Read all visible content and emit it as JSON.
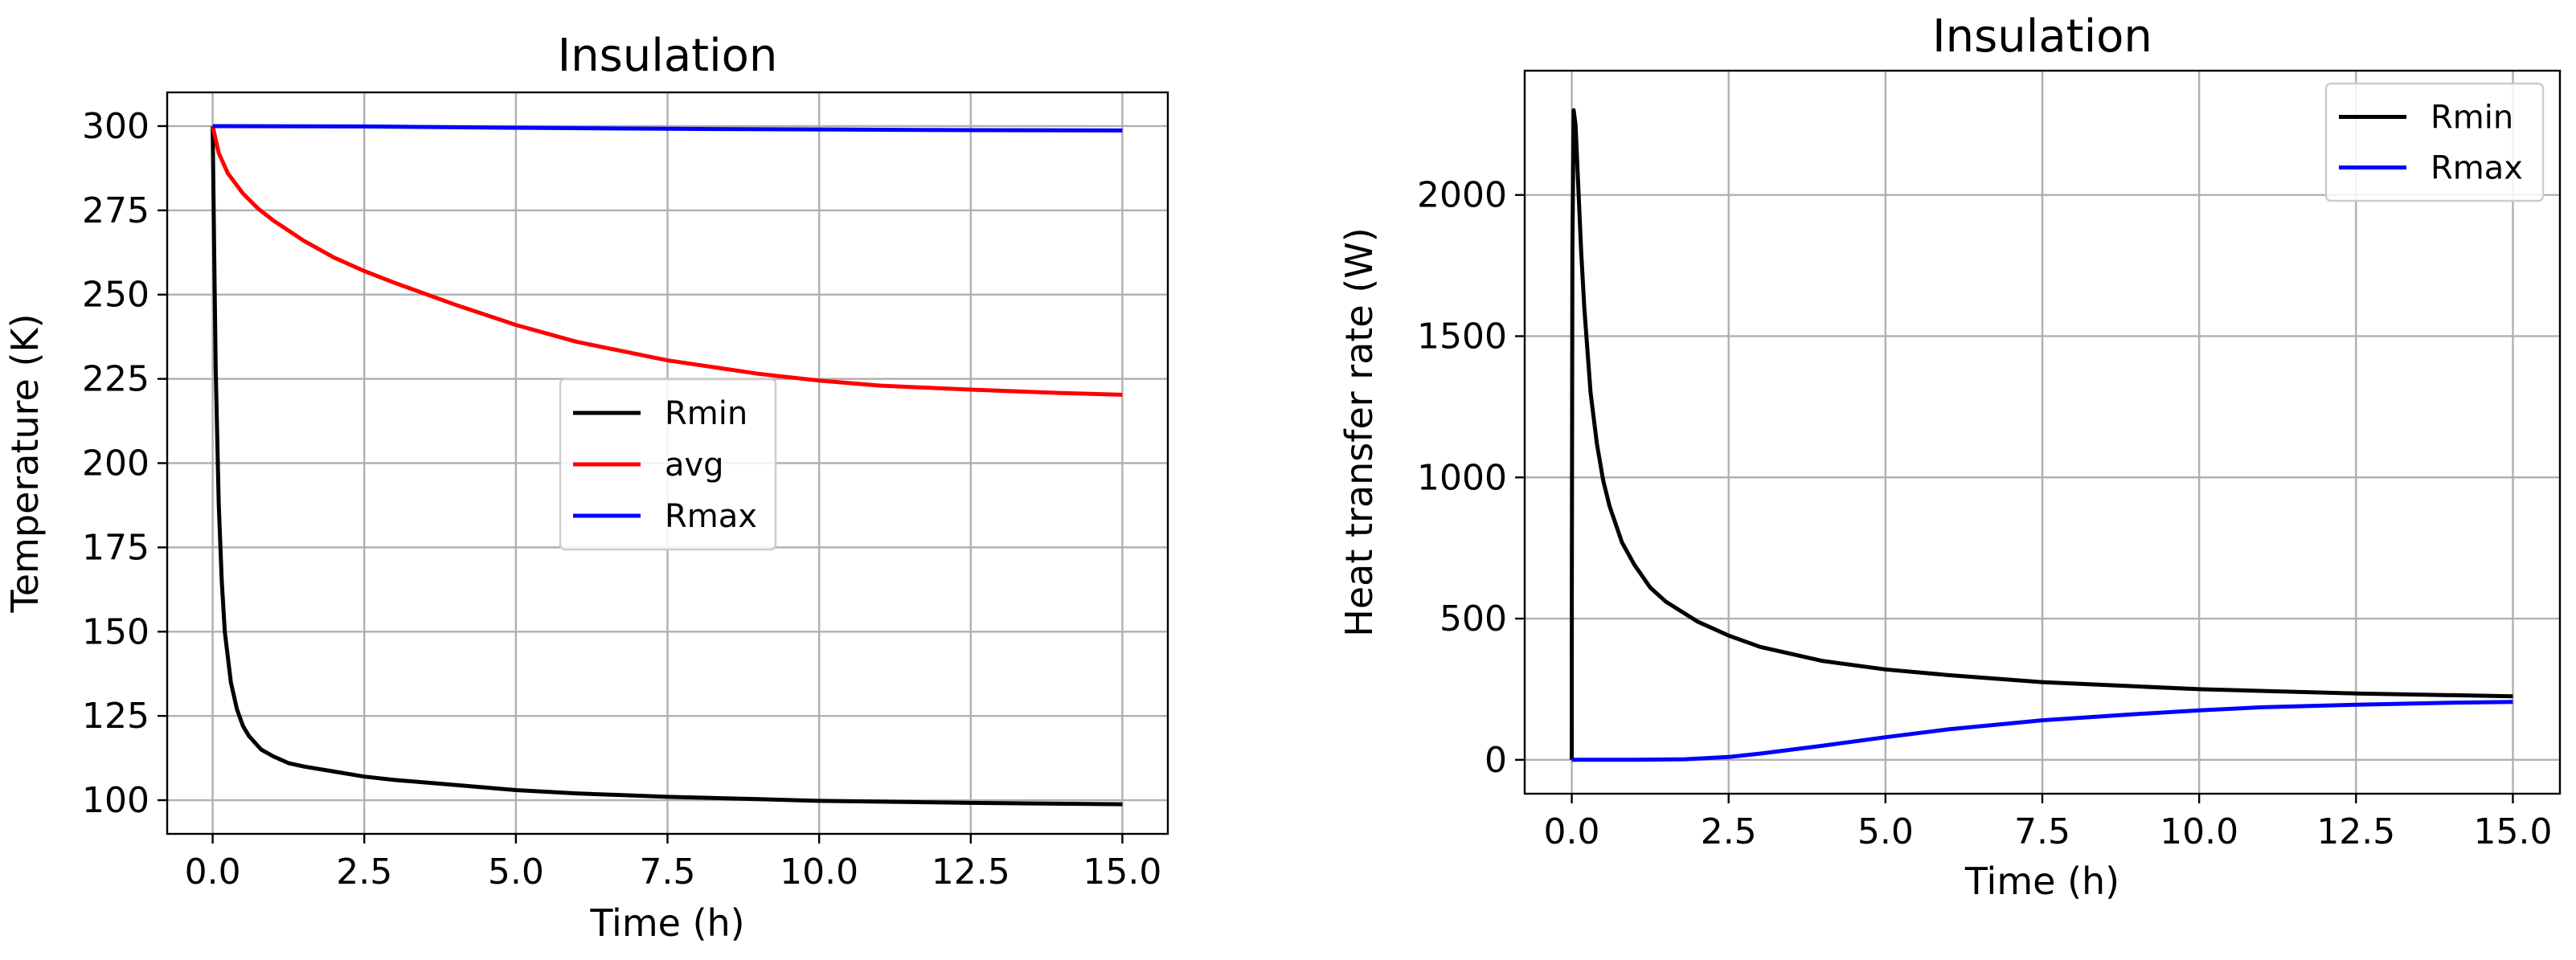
{
  "chart_data": [
    {
      "type": "line",
      "title": "Insulation",
      "xlabel": "Time (h)",
      "ylabel": "Temperature (K)",
      "xlim": [
        -0.75,
        15.75
      ],
      "ylim": [
        90,
        310
      ],
      "xticks": [
        0,
        2.5,
        5,
        7.5,
        10,
        12.5,
        15
      ],
      "xtick_labels": [
        "0.0",
        "2.5",
        "5.0",
        "7.5",
        "10.0",
        "12.5",
        "15.0"
      ],
      "yticks": [
        100,
        125,
        150,
        175,
        200,
        225,
        250,
        275,
        300
      ],
      "ytick_labels": [
        "100",
        "125",
        "150",
        "175",
        "200",
        "225",
        "250",
        "275",
        "300"
      ],
      "grid": true,
      "legend_position": "center-right",
      "series": [
        {
          "name": "Rmin",
          "color": "#000000",
          "x": [
            0,
            0.02,
            0.05,
            0.1,
            0.15,
            0.2,
            0.3,
            0.4,
            0.5,
            0.6,
            0.8,
            1.0,
            1.25,
            1.5,
            2.0,
            2.5,
            3.0,
            4.0,
            5.0,
            6.0,
            7.5,
            9.0,
            10.0,
            12.5,
            15.0
          ],
          "y": [
            300,
            270,
            228,
            188,
            165,
            150,
            135,
            127,
            122,
            119,
            115,
            113,
            111,
            110,
            108.5,
            107,
            106,
            104.5,
            103,
            102,
            101,
            100.3,
            99.8,
            99.2,
            98.8
          ]
        },
        {
          "name": "avg",
          "color": "#ff0000",
          "x": [
            0,
            0.1,
            0.25,
            0.5,
            0.75,
            1.0,
            1.5,
            2.0,
            2.5,
            3.0,
            4.0,
            5.0,
            6.0,
            7.5,
            9.0,
            10.0,
            11.0,
            12.5,
            14.0,
            15.0
          ],
          "y": [
            300,
            292,
            286,
            280,
            275.5,
            272,
            266,
            261,
            257,
            253.5,
            247,
            241,
            236,
            230.5,
            226.5,
            224.5,
            223,
            221.8,
            220.8,
            220.3
          ]
        },
        {
          "name": "Rmax",
          "color": "#0000ff",
          "x": [
            0,
            2.5,
            5.0,
            7.5,
            10.0,
            12.5,
            15.0
          ],
          "y": [
            300,
            299.9,
            299.5,
            299.2,
            299.0,
            298.8,
            298.7
          ]
        }
      ]
    },
    {
      "type": "line",
      "title": "Insulation",
      "xlabel": "Time (h)",
      "ylabel": "Heat transfer rate (W)",
      "xlim": [
        -0.75,
        15.75
      ],
      "ylim": [
        -120,
        2440
      ],
      "xticks": [
        0,
        2.5,
        5,
        7.5,
        10,
        12.5,
        15
      ],
      "xtick_labels": [
        "0.0",
        "2.5",
        "5.0",
        "7.5",
        "10.0",
        "12.5",
        "15.0"
      ],
      "yticks": [
        0,
        500,
        1000,
        1500,
        2000
      ],
      "ytick_labels": [
        "0",
        "500",
        "1000",
        "1500",
        "2000"
      ],
      "grid": true,
      "legend_position": "top-right",
      "series": [
        {
          "name": "Rmin",
          "color": "#000000",
          "x": [
            0,
            0.001,
            0.01,
            0.03,
            0.06,
            0.1,
            0.15,
            0.2,
            0.3,
            0.4,
            0.5,
            0.6,
            0.8,
            1.0,
            1.25,
            1.5,
            2.0,
            2.5,
            3.0,
            4.0,
            5.0,
            6.0,
            7.5,
            9.0,
            10.0,
            12.5,
            15.0
          ],
          "y": [
            0,
            600,
            1800,
            2300,
            2250,
            2050,
            1800,
            1600,
            1300,
            1120,
            990,
            900,
            770,
            690,
            610,
            560,
            490,
            440,
            400,
            350,
            320,
            300,
            275,
            260,
            250,
            235,
            225
          ]
        },
        {
          "name": "Rmax",
          "color": "#0000ff",
          "x": [
            0,
            1.0,
            1.8,
            2.5,
            3.0,
            4.0,
            5.0,
            6.0,
            7.5,
            9.0,
            10.0,
            11.0,
            12.5,
            14.0,
            15.0
          ],
          "y": [
            0,
            0,
            2,
            10,
            22,
            50,
            80,
            108,
            140,
            162,
            175,
            186,
            195,
            202,
            205
          ]
        }
      ]
    }
  ]
}
